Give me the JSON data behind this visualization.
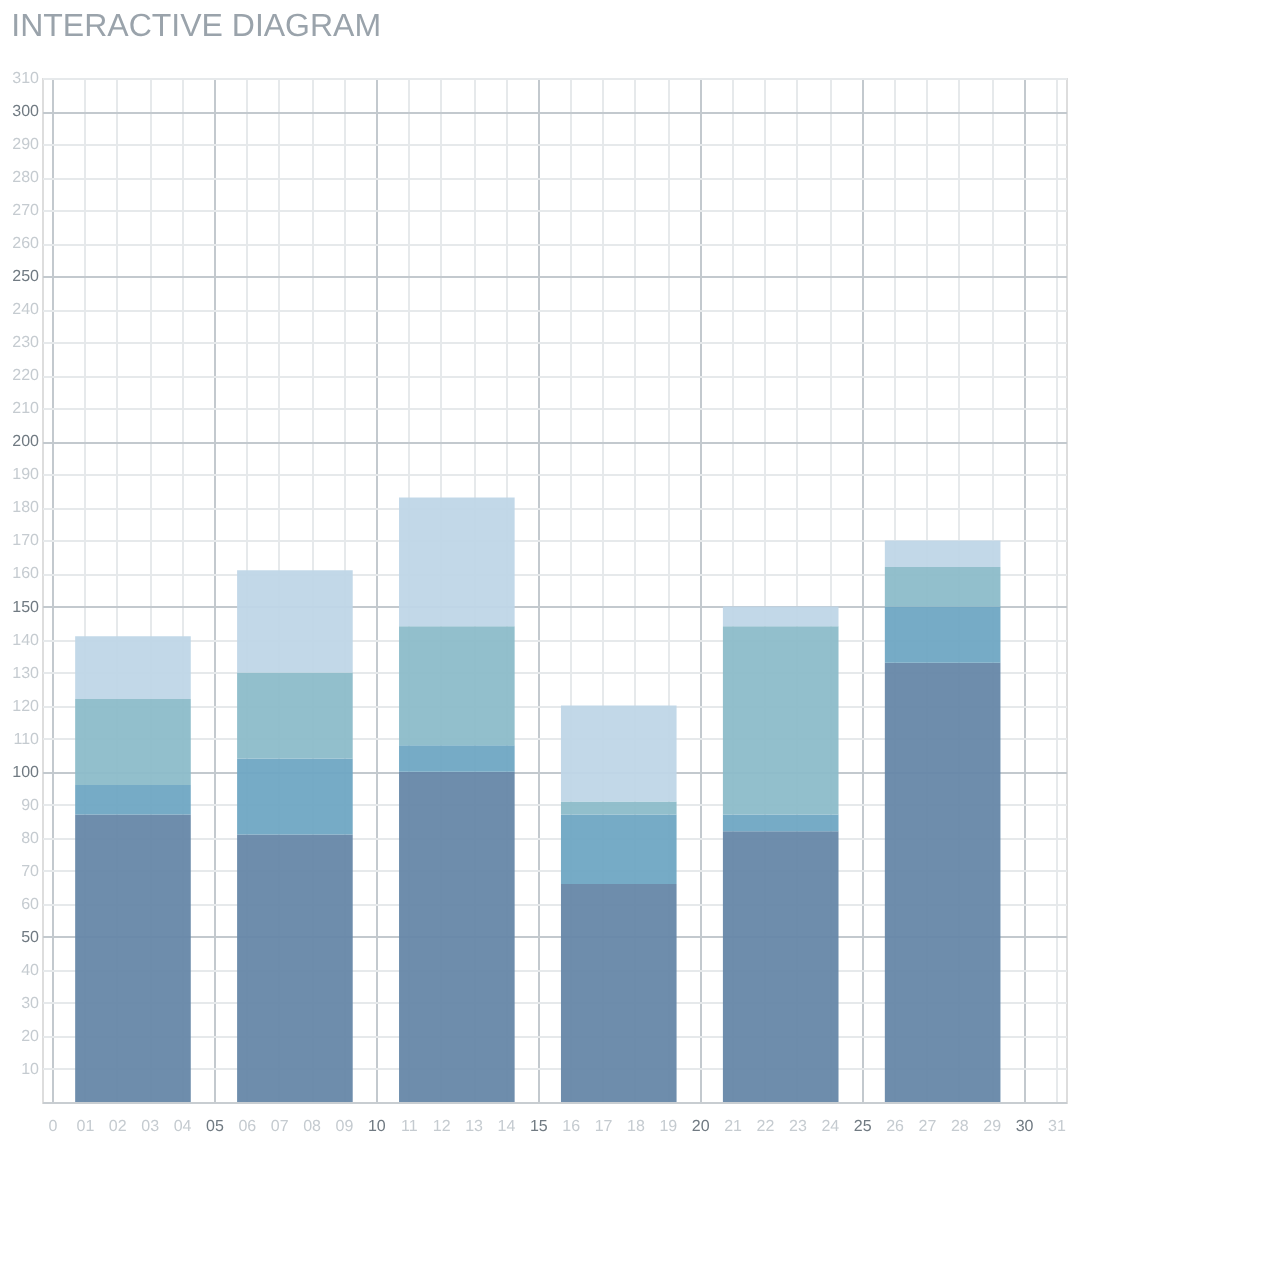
{
  "chart_data": {
    "type": "bar",
    "title": "INTERACTIVE DIAGRAM",
    "stacked": true,
    "x": [
      2.5,
      7.5,
      12.5,
      17.5,
      22.5,
      27.5
    ],
    "series": [
      {
        "color": "#6687a8",
        "values": [
          87,
          81,
          100,
          66,
          82,
          133
        ]
      },
      {
        "color": "#6fa6c3",
        "values": [
          9,
          23,
          8,
          21,
          5,
          17
        ]
      },
      {
        "color": "#8cbcc9",
        "values": [
          26,
          26,
          36,
          4,
          57,
          12
        ]
      },
      {
        "color": "#bfd6e7",
        "values": [
          19,
          31,
          39,
          29,
          6,
          8
        ]
      }
    ],
    "xlim": [
      0,
      31
    ],
    "ylim": [
      0,
      310
    ],
    "xticks": [
      {
        "value": 0,
        "label": "0"
      },
      {
        "value": 1,
        "label": "01"
      },
      {
        "value": 2,
        "label": "02"
      },
      {
        "value": 3,
        "label": "03"
      },
      {
        "value": 4,
        "label": "04"
      },
      {
        "value": 5,
        "label": "05"
      },
      {
        "value": 6,
        "label": "06"
      },
      {
        "value": 7,
        "label": "07"
      },
      {
        "value": 8,
        "label": "08"
      },
      {
        "value": 9,
        "label": "09"
      },
      10,
      11,
      12,
      13,
      14,
      15,
      16,
      17,
      18,
      19,
      20,
      21,
      22,
      23,
      24,
      25,
      26,
      27,
      28,
      29,
      30,
      31
    ],
    "yticks": [
      10,
      20,
      30,
      40,
      50,
      60,
      70,
      80,
      90,
      100,
      110,
      120,
      130,
      140,
      150,
      160,
      170,
      180,
      190,
      200,
      210,
      220,
      230,
      240,
      250,
      260,
      270,
      280,
      290,
      300,
      310
    ],
    "grid": true
  }
}
